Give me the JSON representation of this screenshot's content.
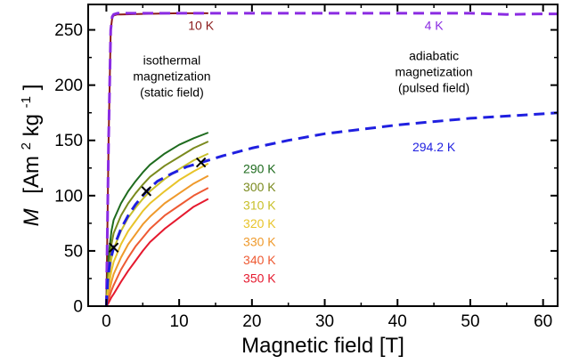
{
  "chart_data": {
    "type": "line",
    "title": "",
    "xlabel": "Magnetic field [T]",
    "ylabel": {
      "symbol": "M",
      "unit_open": "[Am",
      "unit_sup1": "2",
      "unit_mid": "kg",
      "unit_sup2": "-1",
      "unit_close": "]"
    },
    "xlim": [
      -2.5,
      62
    ],
    "ylim": [
      0,
      273
    ],
    "xticks": [
      0,
      10,
      20,
      30,
      40,
      50,
      60
    ],
    "yticks": [
      0,
      50,
      100,
      150,
      200,
      250
    ],
    "grid": false,
    "legend": "none",
    "series": [
      {
        "name": "4 K",
        "style": "dashed",
        "color": "#8a2be2",
        "x": [
          0,
          0.3,
          0.6,
          0.8,
          1.0,
          1.5,
          2,
          5,
          10,
          20,
          30,
          40,
          50,
          55,
          60,
          62
        ],
        "y": [
          0,
          150,
          250,
          262,
          264,
          265,
          265,
          265,
          265,
          265,
          265,
          265,
          265,
          264,
          264.5,
          264.5
        ]
      },
      {
        "name": "10 K",
        "style": "solid",
        "color": "#8b1a1a",
        "x": [
          0,
          0.3,
          0.6,
          0.8,
          1.0,
          1.5,
          2,
          5,
          10,
          14
        ],
        "y": [
          0,
          150,
          250,
          261,
          263,
          264,
          264,
          264.5,
          265,
          265
        ]
      },
      {
        "name": "294.2 K",
        "style": "dashed",
        "color": "#1f1fe0",
        "x": [
          0,
          0.2,
          0.5,
          1,
          2,
          3,
          4,
          5.5,
          7,
          9,
          11,
          13,
          16,
          20,
          25,
          30,
          40,
          50,
          60,
          62
        ],
        "y": [
          0,
          25,
          40,
          53,
          70,
          82,
          92,
          104,
          113,
          120,
          126,
          130,
          136,
          143,
          150,
          156,
          164,
          170,
          174,
          175
        ]
      },
      {
        "name": "290 K",
        "style": "solid",
        "color": "#1e6b1e",
        "x": [
          0,
          0.3,
          0.7,
          1,
          2,
          3,
          4,
          5,
          6,
          8,
          10,
          12,
          14
        ],
        "y": [
          0,
          45,
          68,
          78,
          93,
          104,
          113,
          121,
          128,
          138,
          146,
          152,
          157
        ]
      },
      {
        "name": "300 K",
        "style": "solid",
        "color": "#7a8a1e",
        "x": [
          0,
          0.3,
          0.7,
          1,
          2,
          3,
          4,
          5,
          6,
          8,
          10,
          12,
          14
        ],
        "y": [
          0,
          35,
          56,
          66,
          82,
          93,
          102,
          110,
          117,
          127,
          135,
          143,
          149
        ]
      },
      {
        "name": "310 K",
        "style": "solid",
        "color": "#c8c02a",
        "x": [
          0,
          0.3,
          0.7,
          1,
          2,
          3,
          4,
          5,
          6,
          8,
          10,
          12,
          14
        ],
        "y": [
          0,
          25,
          43,
          52,
          68,
          80,
          89,
          97,
          104,
          115,
          124,
          132,
          138
        ]
      },
      {
        "name": "320 K",
        "style": "solid",
        "color": "#e8c42a",
        "x": [
          0,
          0.3,
          0.7,
          1,
          2,
          3,
          4,
          5,
          6,
          8,
          10,
          12,
          14
        ],
        "y": [
          0,
          17,
          32,
          40,
          56,
          68,
          77,
          86,
          93,
          104,
          114,
          122,
          129
        ]
      },
      {
        "name": "330 K",
        "style": "solid",
        "color": "#ef9a2c",
        "x": [
          0,
          0.3,
          0.7,
          1,
          2,
          3,
          4,
          5,
          6,
          8,
          10,
          12,
          14
        ],
        "y": [
          0,
          10,
          22,
          29,
          44,
          56,
          65,
          74,
          81,
          93,
          102,
          111,
          118
        ]
      },
      {
        "name": "340 K",
        "style": "solid",
        "color": "#ee5a33",
        "x": [
          0,
          0.3,
          0.7,
          1,
          2,
          3,
          4,
          5,
          6,
          8,
          10,
          12,
          14
        ],
        "y": [
          0,
          6,
          14,
          19,
          33,
          44,
          54,
          62,
          70,
          82,
          91,
          100,
          107
        ]
      },
      {
        "name": "350 K",
        "style": "solid",
        "color": "#e5192e",
        "x": [
          0,
          0.3,
          0.7,
          1,
          2,
          3,
          4,
          5,
          6,
          8,
          10,
          12,
          14
        ],
        "y": [
          0,
          3,
          8,
          11,
          22,
          32,
          41,
          50,
          58,
          70,
          80,
          90,
          97
        ]
      }
    ],
    "markers": {
      "symbol": "x",
      "color": "#000000",
      "x": [
        1.0,
        5.5,
        13.0
      ],
      "y": [
        53,
        104,
        130
      ]
    },
    "annotations": [
      {
        "lines": [
          "10 K"
        ],
        "x": 13.0,
        "y": 254,
        "color": "#8b1a1a"
      },
      {
        "lines": [
          "4 K"
        ],
        "x": 45.0,
        "y": 254,
        "color": "#8a2be2"
      },
      {
        "lines": [
          "isothermal",
          "magnetization",
          "(static field)"
        ],
        "x": 9.0,
        "y": 208,
        "color": "#000000"
      },
      {
        "lines": [
          "adiabatic",
          "magnetization",
          "(pulsed field)"
        ],
        "x": 45.0,
        "y": 212,
        "color": "#000000"
      },
      {
        "lines": [
          "294.2 K"
        ],
        "x": 45.0,
        "y": 144,
        "color": "#1f1fe0"
      },
      {
        "lines": [
          "290 K"
        ],
        "x": 18.8,
        "y": 124.5,
        "color": "#1e6b1e"
      },
      {
        "lines": [
          "300 K"
        ],
        "x": 18.8,
        "y": 108,
        "color": "#7a8a1e"
      },
      {
        "lines": [
          "310 K"
        ],
        "x": 18.8,
        "y": 91.5,
        "color": "#c8c02a"
      },
      {
        "lines": [
          "320 K"
        ],
        "x": 18.8,
        "y": 75,
        "color": "#e8c42a"
      },
      {
        "lines": [
          "330 K"
        ],
        "x": 18.8,
        "y": 58.5,
        "color": "#ef9a2c"
      },
      {
        "lines": [
          "340 K"
        ],
        "x": 18.8,
        "y": 42,
        "color": "#ee5a33"
      },
      {
        "lines": [
          "350 K"
        ],
        "x": 18.8,
        "y": 25.5,
        "color": "#e5192e"
      }
    ]
  }
}
